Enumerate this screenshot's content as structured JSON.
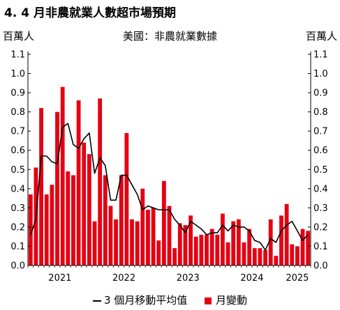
{
  "title": "4. 4 月非農就業人數超市場預期",
  "chart_data": {
    "type": "bar",
    "title": "4. 4 月非農就業人數超市場預期",
    "subtitle": "美國：非農就業數據",
    "ylabel_left": "百萬人",
    "ylabel_right": "百萬人",
    "ylim": [
      0,
      1.1
    ],
    "yticks": [
      "0.0",
      "0.1",
      "0.2",
      "0.3",
      "0.4",
      "0.5",
      "0.6",
      "0.7",
      "0.8",
      "0.9",
      "1.0",
      "1.1"
    ],
    "year_labels": [
      "2021",
      "2022",
      "2023",
      "2024",
      "2025"
    ],
    "year_start_index": [
      0,
      12,
      24,
      36,
      48
    ],
    "legend_position": "bottom",
    "grid": false,
    "colors": {
      "bars": "#e50012",
      "line": "#000000"
    },
    "series": [
      {
        "name": "月變動",
        "type": "bar",
        "values": [
          0.37,
          0.51,
          0.82,
          0.37,
          0.42,
          0.8,
          0.93,
          0.49,
          0.47,
          0.86,
          0.64,
          0.58,
          0.23,
          0.87,
          0.47,
          0.31,
          0.24,
          0.47,
          0.69,
          0.24,
          0.23,
          0.4,
          0.29,
          0.3,
          0.13,
          0.44,
          0.31,
          0.09,
          0.22,
          0.21,
          0.26,
          0.15,
          0.16,
          0.16,
          0.19,
          0.16,
          0.27,
          0.12,
          0.23,
          0.24,
          0.12,
          0.19,
          0.09,
          0.09,
          0.08,
          0.24,
          0.05,
          0.26,
          0.32,
          0.11,
          0.1,
          0.19,
          0.18
        ],
        "first_month": "2021-01"
      },
      {
        "name": "3 個月移動平均值",
        "type": "line",
        "values": [
          0.16,
          0.24,
          0.57,
          0.57,
          0.54,
          0.53,
          0.72,
          0.74,
          0.63,
          0.61,
          0.66,
          0.69,
          0.48,
          0.56,
          0.52,
          0.34,
          0.34,
          0.47,
          0.47,
          0.42,
          0.37,
          0.29,
          0.31,
          0.3,
          0.29,
          0.29,
          0.29,
          0.24,
          0.21,
          0.17,
          0.23,
          0.21,
          0.19,
          0.16,
          0.17,
          0.17,
          0.21,
          0.18,
          0.21,
          0.2,
          0.2,
          0.18,
          0.13,
          0.12,
          0.08,
          0.14,
          0.12,
          0.18,
          0.21,
          0.23,
          0.18,
          0.13,
          0.16
        ],
        "first_month": "2021-01"
      }
    ]
  }
}
